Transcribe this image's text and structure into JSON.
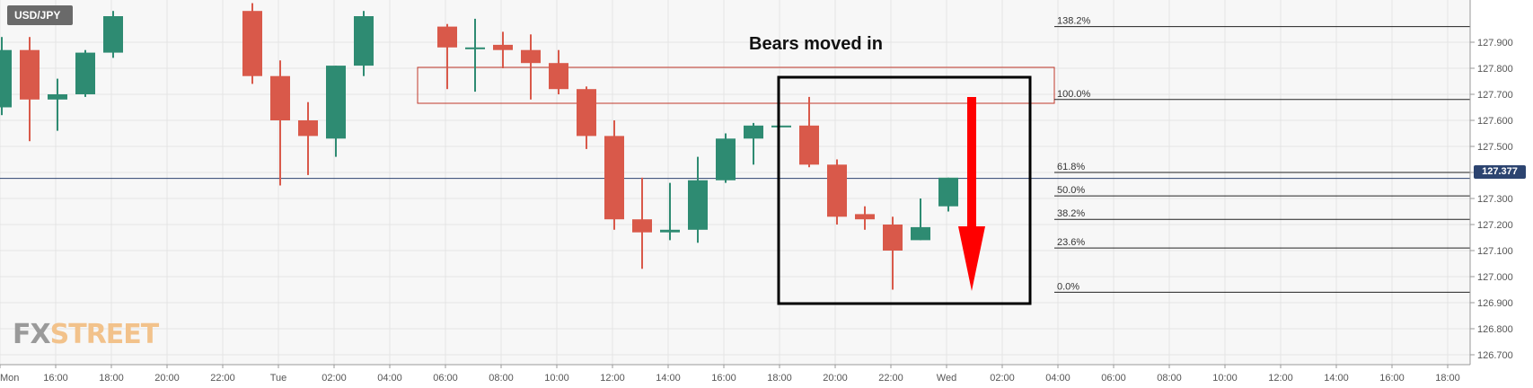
{
  "symbol": "USD/JPY",
  "annotation": "Bears moved in",
  "logo": {
    "part1": "FX",
    "part2": "STREET"
  },
  "current_price": "127.377",
  "colors": {
    "bull": "#2e8b72",
    "bear": "#d9594a",
    "arrow": "#ff0000",
    "price_line": "#2c4470"
  },
  "chart_data": {
    "type": "candlestick",
    "title": "",
    "xlabel": "",
    "ylabel": "",
    "ylim": [
      126.7,
      128.0
    ],
    "grid": true,
    "y_ticks": [
      "127.900",
      "127.800",
      "127.700",
      "127.600",
      "127.500",
      "127.400",
      "127.300",
      "127.200",
      "127.100",
      "127.000",
      "126.900",
      "126.800",
      "126.700"
    ],
    "x_ticks": [
      "Mon",
      "16:00",
      "18:00",
      "20:00",
      "22:00",
      "Tue",
      "02:00",
      "04:00",
      "06:00",
      "08:00",
      "10:00",
      "12:00",
      "14:00",
      "16:00",
      "18:00",
      "20:00",
      "22:00",
      "Wed",
      "02:00",
      "04:00",
      "06:00",
      "08:00",
      "10:00",
      "12:00",
      "14:00",
      "16:00",
      "18:00"
    ],
    "candles": [
      {
        "t": "14:00",
        "o": 127.65,
        "h": 127.92,
        "l": 127.62,
        "c": 127.87
      },
      {
        "t": "15:00",
        "o": 127.87,
        "h": 127.92,
        "l": 127.52,
        "c": 127.68
      },
      {
        "t": "16:00",
        "o": 127.68,
        "h": 127.76,
        "l": 127.56,
        "c": 127.7
      },
      {
        "t": "17:00",
        "o": 127.7,
        "h": 127.87,
        "l": 127.69,
        "c": 127.86
      },
      {
        "t": "18:00",
        "o": 127.86,
        "h": 128.02,
        "l": 127.84,
        "c": 128.0
      },
      {
        "t": "23:00",
        "o": 128.02,
        "h": 128.05,
        "l": 127.74,
        "c": 127.77
      },
      {
        "t": "00:00",
        "o": 127.77,
        "h": 127.83,
        "l": 127.35,
        "c": 127.6
      },
      {
        "t": "01:00",
        "o": 127.6,
        "h": 127.67,
        "l": 127.39,
        "c": 127.54
      },
      {
        "t": "02:00",
        "o": 127.53,
        "h": 127.81,
        "l": 127.46,
        "c": 127.81
      },
      {
        "t": "03:00",
        "o": 127.81,
        "h": 128.02,
        "l": 127.77,
        "c": 128.0
      },
      {
        "t": "06:00",
        "o": 127.96,
        "h": 127.97,
        "l": 127.72,
        "c": 127.88
      },
      {
        "t": "07:00",
        "o": 127.88,
        "h": 127.99,
        "l": 127.71,
        "c": 127.88
      },
      {
        "t": "08:00",
        "o": 127.89,
        "h": 127.94,
        "l": 127.8,
        "c": 127.87
      },
      {
        "t": "09:00",
        "o": 127.87,
        "h": 127.93,
        "l": 127.68,
        "c": 127.82
      },
      {
        "t": "10:00",
        "o": 127.82,
        "h": 127.87,
        "l": 127.7,
        "c": 127.72
      },
      {
        "t": "11:00",
        "o": 127.72,
        "h": 127.73,
        "l": 127.49,
        "c": 127.54
      },
      {
        "t": "12:00",
        "o": 127.54,
        "h": 127.6,
        "l": 127.18,
        "c": 127.22
      },
      {
        "t": "13:00",
        "o": 127.22,
        "h": 127.38,
        "l": 127.03,
        "c": 127.17
      },
      {
        "t": "14:00",
        "o": 127.17,
        "h": 127.36,
        "l": 127.14,
        "c": 127.18
      },
      {
        "t": "15:00",
        "o": 127.18,
        "h": 127.46,
        "l": 127.13,
        "c": 127.37
      },
      {
        "t": "16:00",
        "o": 127.37,
        "h": 127.55,
        "l": 127.36,
        "c": 127.53
      },
      {
        "t": "17:00",
        "o": 127.53,
        "h": 127.59,
        "l": 127.43,
        "c": 127.58
      },
      {
        "t": "18:00",
        "o": 127.58,
        "h": 127.58,
        "l": 127.58,
        "c": 127.58
      },
      {
        "t": "19:00",
        "o": 127.58,
        "h": 127.69,
        "l": 127.42,
        "c": 127.43
      },
      {
        "t": "20:00",
        "o": 127.43,
        "h": 127.45,
        "l": 127.2,
        "c": 127.23
      },
      {
        "t": "21:00",
        "o": 127.24,
        "h": 127.27,
        "l": 127.18,
        "c": 127.22
      },
      {
        "t": "22:00",
        "o": 127.2,
        "h": 127.23,
        "l": 126.95,
        "c": 127.1
      },
      {
        "t": "23:00",
        "o": 127.14,
        "h": 127.3,
        "l": 127.14,
        "c": 127.19
      },
      {
        "t": "00:00",
        "o": 127.27,
        "h": 127.38,
        "l": 127.25,
        "c": 127.38
      }
    ],
    "fibonacci": [
      {
        "label": "138.2%",
        "value": 127.96
      },
      {
        "label": "100.0%",
        "value": 127.68
      },
      {
        "label": "61.8%",
        "value": 127.4
      },
      {
        "label": "50.0%",
        "value": 127.31
      },
      {
        "label": "38.2%",
        "value": 127.22
      },
      {
        "label": "23.6%",
        "value": 127.11
      },
      {
        "label": "0.0%",
        "value": 126.94
      }
    ],
    "current_price": 127.377
  }
}
